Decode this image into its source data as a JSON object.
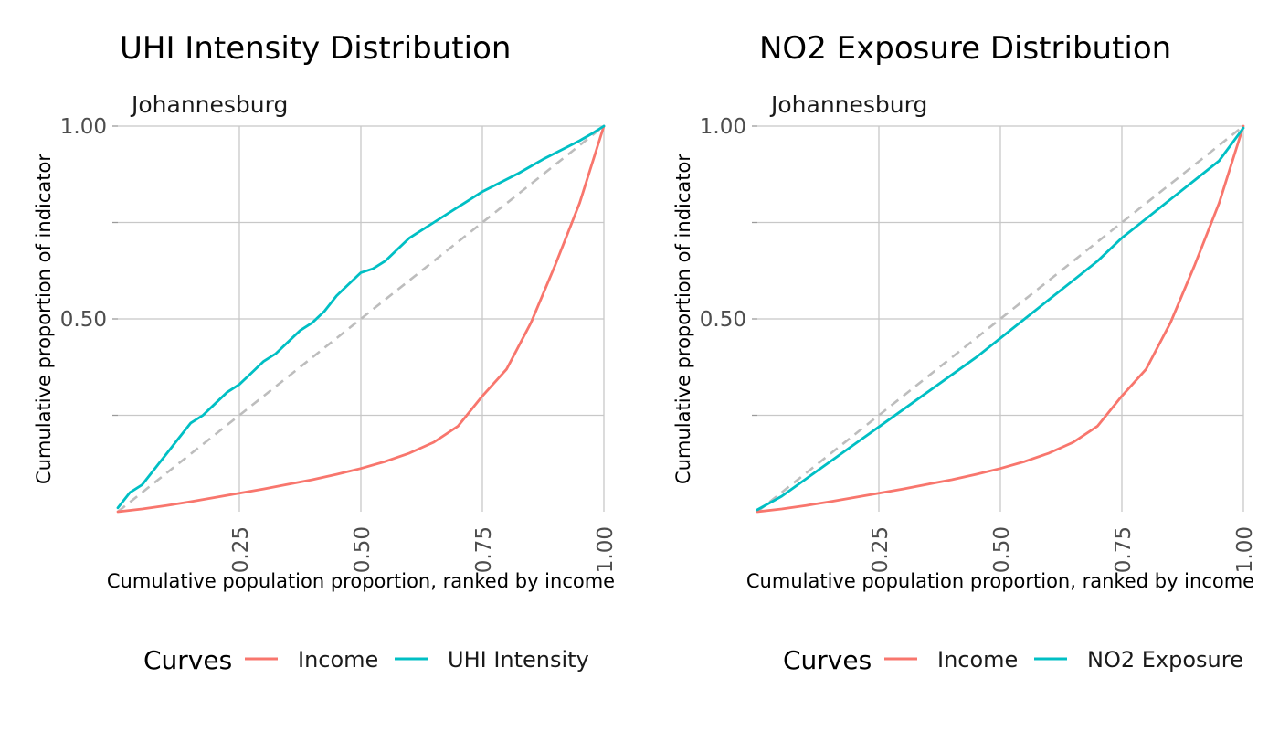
{
  "chart_data": [
    {
      "type": "line",
      "title": "UHI Intensity Distribution",
      "subtitle": "Johannesburg",
      "xlabel": "Cumulative population proportion, ranked by income",
      "ylabel": "Cumulative proportion of indicator",
      "xlim": [
        0,
        1
      ],
      "ylim": [
        0,
        1
      ],
      "x_ticks": [
        "0.25",
        "0.50",
        "0.75",
        "1.00"
      ],
      "y_ticks": [
        "0.50",
        "1.00"
      ],
      "grid": true,
      "reference_line": "equality diagonal (dashed)",
      "legend": {
        "title": "Curves",
        "position": "bottom"
      },
      "series": [
        {
          "name": "Income",
          "color": "#F8766D",
          "x": [
            0,
            0.05,
            0.1,
            0.15,
            0.2,
            0.25,
            0.3,
            0.35,
            0.4,
            0.45,
            0.5,
            0.55,
            0.6,
            0.65,
            0.7,
            0.75,
            0.8,
            0.85,
            0.9,
            0.95,
            1.0
          ],
          "y": [
            0,
            0.007,
            0.016,
            0.026,
            0.037,
            0.048,
            0.059,
            0.071,
            0.083,
            0.097,
            0.112,
            0.13,
            0.152,
            0.18,
            0.222,
            0.3,
            0.37,
            0.49,
            0.64,
            0.8,
            1.0
          ]
        },
        {
          "name": "UHI Intensity",
          "color": "#00BFC4",
          "x": [
            0,
            0.025,
            0.05,
            0.075,
            0.1,
            0.125,
            0.15,
            0.175,
            0.2,
            0.225,
            0.25,
            0.275,
            0.3,
            0.325,
            0.35,
            0.375,
            0.4,
            0.425,
            0.45,
            0.475,
            0.5,
            0.525,
            0.55,
            0.575,
            0.6,
            0.625,
            0.65,
            0.675,
            0.7,
            0.725,
            0.75,
            0.775,
            0.8,
            0.825,
            0.85,
            0.875,
            0.9,
            0.925,
            0.95,
            0.975,
            1.0
          ],
          "y": [
            0.01,
            0.05,
            0.07,
            0.11,
            0.15,
            0.19,
            0.23,
            0.25,
            0.28,
            0.31,
            0.33,
            0.36,
            0.39,
            0.41,
            0.44,
            0.47,
            0.49,
            0.52,
            0.56,
            0.59,
            0.62,
            0.63,
            0.65,
            0.68,
            0.71,
            0.73,
            0.75,
            0.77,
            0.79,
            0.81,
            0.83,
            0.846,
            0.862,
            0.878,
            0.896,
            0.914,
            0.93,
            0.946,
            0.962,
            0.98,
            1.0
          ]
        }
      ]
    },
    {
      "type": "line",
      "title": "NO2 Exposure Distribution",
      "subtitle": "Johannesburg",
      "xlabel": "Cumulative population proportion, ranked by income",
      "ylabel": "Cumulative proportion of indicator",
      "xlim": [
        0,
        1
      ],
      "ylim": [
        0,
        1
      ],
      "x_ticks": [
        "0.25",
        "0.50",
        "0.75",
        "1.00"
      ],
      "y_ticks": [
        "0.50",
        "1.00"
      ],
      "grid": true,
      "reference_line": "equality diagonal (dashed)",
      "legend": {
        "title": "Curves",
        "position": "bottom"
      },
      "series": [
        {
          "name": "Income",
          "color": "#F8766D",
          "x": [
            0,
            0.05,
            0.1,
            0.15,
            0.2,
            0.25,
            0.3,
            0.35,
            0.4,
            0.45,
            0.5,
            0.55,
            0.6,
            0.65,
            0.7,
            0.75,
            0.8,
            0.85,
            0.9,
            0.95,
            1.0
          ],
          "y": [
            0,
            0.007,
            0.016,
            0.026,
            0.037,
            0.048,
            0.059,
            0.071,
            0.083,
            0.097,
            0.112,
            0.13,
            0.152,
            0.18,
            0.222,
            0.3,
            0.37,
            0.49,
            0.64,
            0.8,
            1.0
          ]
        },
        {
          "name": "NO2 Exposure",
          "color": "#00BFC4",
          "x": [
            0,
            0.05,
            0.1,
            0.15,
            0.2,
            0.25,
            0.3,
            0.35,
            0.4,
            0.45,
            0.5,
            0.55,
            0.6,
            0.65,
            0.7,
            0.75,
            0.8,
            0.85,
            0.9,
            0.95,
            1.0
          ],
          "y": [
            0.005,
            0.04,
            0.085,
            0.13,
            0.175,
            0.22,
            0.265,
            0.31,
            0.355,
            0.4,
            0.45,
            0.5,
            0.55,
            0.6,
            0.65,
            0.71,
            0.76,
            0.81,
            0.86,
            0.91,
            0.995
          ]
        }
      ]
    }
  ]
}
